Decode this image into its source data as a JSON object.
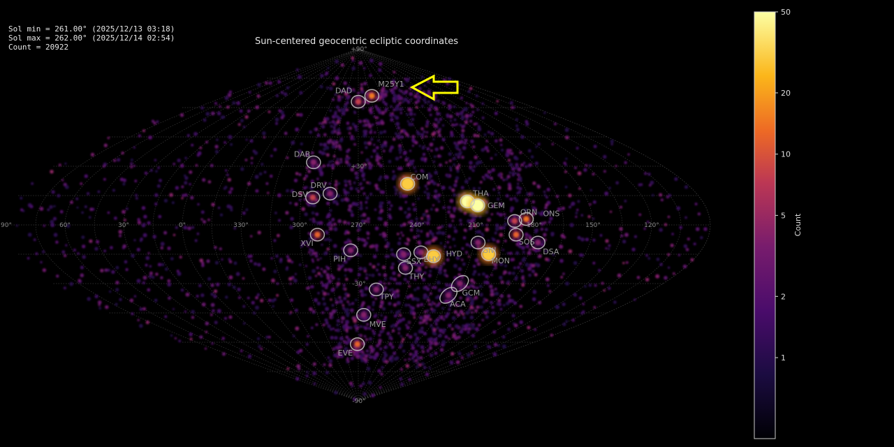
{
  "stats": {
    "sol_min": "Sol min = 261.00° (2025/12/13 03:18)",
    "sol_max": "Sol max = 262.00° (2025/12/14 02:54)",
    "count": "Count = 20922"
  },
  "chart_data": {
    "type": "heatmap",
    "title": "Sun-centered geocentric ecliptic coordinates",
    "projection": "sinusoidal",
    "grid": true,
    "lon_ticks": [
      "60°",
      "30°",
      "0°",
      "330°",
      "300°",
      "270°",
      "240°",
      "210°",
      "180°",
      "150°",
      "120°",
      "90°"
    ],
    "lat_ticks": [
      "+90°",
      "+30°",
      "-30°",
      "-90°"
    ],
    "colorbar": {
      "label": "Count",
      "scale": "log",
      "ticks": [
        "50",
        "20",
        "10",
        "5",
        "2",
        "1"
      ],
      "range": [
        0.4,
        50
      ],
      "colormap": "inferno"
    },
    "showers": [
      {
        "code": "DAD",
        "lon": 270,
        "lat": 63
      },
      {
        "code": "M25Y1",
        "lon": 253,
        "lat": 66,
        "highlighted": true
      },
      {
        "code": "DAB",
        "lon": 297,
        "lat": 32
      },
      {
        "code": "DRV",
        "lon": 285,
        "lat": 16
      },
      {
        "code": "DSV",
        "lon": 294,
        "lat": 14
      },
      {
        "code": "XVI",
        "lon": 291,
        "lat": -5
      },
      {
        "code": "PIH",
        "lon": 274,
        "lat": -13
      },
      {
        "code": "COM",
        "lon": 243,
        "lat": 21
      },
      {
        "code": "THA",
        "lon": 213,
        "lat": 12
      },
      {
        "code": "GEM",
        "lon": 208,
        "lat": 10
      },
      {
        "code": "ORN",
        "lon": 190,
        "lat": 2
      },
      {
        "code": "ONS",
        "lon": 184,
        "lat": 3
      },
      {
        "code": "SOS",
        "lon": 189,
        "lat": -5
      },
      {
        "code": "DSA",
        "lon": 177,
        "lat": -9
      },
      {
        "code": "GNI",
        "lon": 208,
        "lat": -9
      },
      {
        "code": "MON",
        "lon": 201,
        "lat": -15
      },
      {
        "code": "SSX",
        "lon": 246,
        "lat": -15
      },
      {
        "code": "EHY",
        "lon": 237,
        "lat": -14
      },
      {
        "code": "HYD",
        "lon": 230,
        "lat": -16
      },
      {
        "code": "THY",
        "lon": 244,
        "lat": -22
      },
      {
        "code": "GCM",
        "lon": 210,
        "lat": -30
      },
      {
        "code": "ACA",
        "lon": 213,
        "lat": -36
      },
      {
        "code": "TPY",
        "lon": 259,
        "lat": -33
      },
      {
        "code": "MVE",
        "lon": 266,
        "lat": -46
      },
      {
        "code": "EVE",
        "lon": 271,
        "lat": -61
      }
    ]
  },
  "annotation": {
    "type": "arrow",
    "color": "#ffff00",
    "points_to": "M25Y1"
  }
}
